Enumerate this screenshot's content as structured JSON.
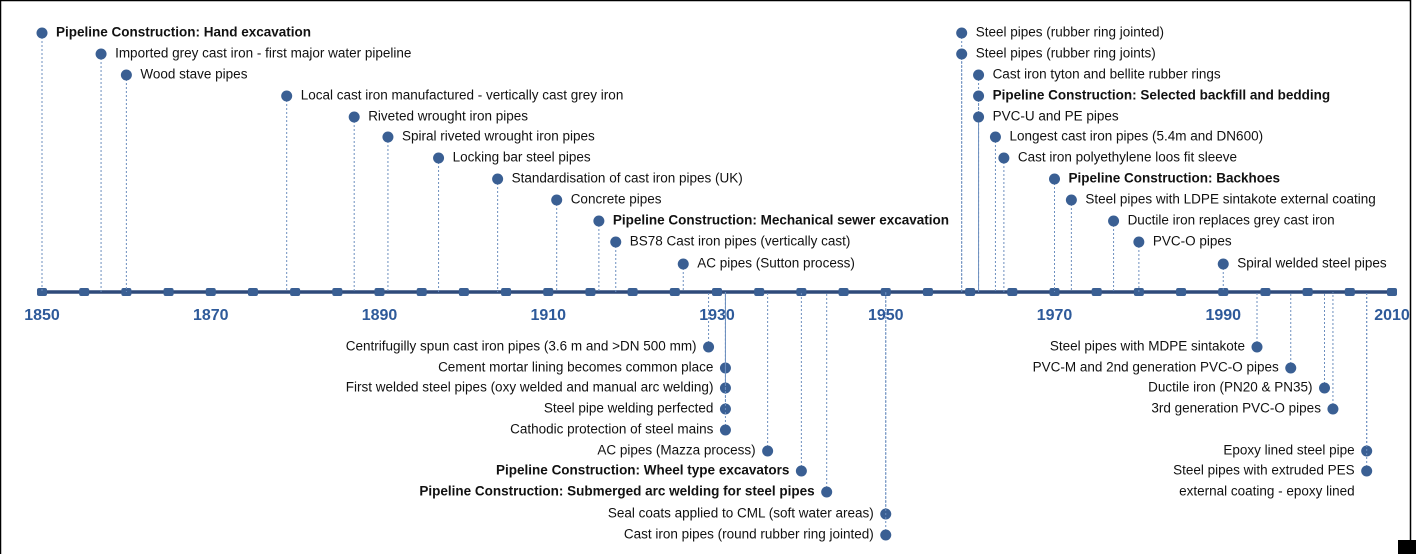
{
  "axis": {
    "start": 1850,
    "end": 2010,
    "minor_step": 5,
    "labels": [
      1850,
      1870,
      1890,
      1910,
      1930,
      1950,
      1970,
      1990,
      2010
    ]
  },
  "above": [
    {
      "year": 1850,
      "bold": true,
      "lines": [
        "Pipeline Construction:  Hand excavation"
      ]
    },
    {
      "year": 1857,
      "lines": [
        "Imported grey cast iron - first major water pipeline"
      ]
    },
    {
      "year": 1860,
      "lines": [
        "Wood stave pipes"
      ]
    },
    {
      "year": 1879,
      "lines": [
        "Local cast iron manufactured - vertically cast grey iron"
      ]
    },
    {
      "year": 1887,
      "lines": [
        "Riveted wrought iron pipes"
      ]
    },
    {
      "year": 1891,
      "lines": [
        "Spiral riveted wrought iron pipes"
      ]
    },
    {
      "year": 1897,
      "lines": [
        "Locking bar steel pipes"
      ]
    },
    {
      "year": 1904,
      "lines": [
        "Standardisation of cast iron pipes (UK)"
      ]
    },
    {
      "year": 1911,
      "lines": [
        "Concrete pipes"
      ]
    },
    {
      "year": 1916,
      "bold": true,
      "lines": [
        "Pipeline Construction: Mechanical sewer excavation"
      ]
    },
    {
      "year": 1918,
      "lines": [
        "BS78 Cast iron pipes (vertically cast)"
      ]
    },
    {
      "year": 1926,
      "lines": [
        "AC pipes (Sutton process)"
      ]
    },
    {
      "year": 1959,
      "lines": [
        "Steel pipes (rubber ring jointed)"
      ]
    },
    {
      "year": 1959,
      "lines": [
        "Steel pipes (rubber ring joints)"
      ]
    },
    {
      "year": 1961,
      "lines": [
        "Cast iron tyton and bellite rubber rings"
      ]
    },
    {
      "year": 1961,
      "bold": true,
      "lines": [
        "Pipeline Construction: Selected backfill and bedding"
      ]
    },
    {
      "year": 1961,
      "lines": [
        "PVC-U and PE pipes"
      ]
    },
    {
      "year": 1963,
      "lines": [
        "Longest cast iron pipes (5.4m and DN600)"
      ]
    },
    {
      "year": 1964,
      "lines": [
        "Cast iron polyethylene loos fit sleeve"
      ]
    },
    {
      "year": 1970,
      "bold": true,
      "lines": [
        "Pipeline Construction:  Backhoes"
      ]
    },
    {
      "year": 1972,
      "lines": [
        "Steel pipes with LDPE sintakote external coating"
      ]
    },
    {
      "year": 1977,
      "lines": [
        "Ductile iron replaces grey cast iron"
      ]
    },
    {
      "year": 1980,
      "lines": [
        "PVC-O pipes"
      ]
    },
    {
      "year": 1990,
      "lines": [
        "Spiral welded steel pipes"
      ]
    }
  ],
  "below": [
    {
      "year": 1929,
      "lines": [
        "Centrifugilly spun cast iron pipes (3.6 m and >DN 500 mm)"
      ]
    },
    {
      "year": 1931,
      "lines": [
        "Cement mortar lining becomes common place"
      ]
    },
    {
      "year": 1931,
      "lines": [
        "First welded steel pipes (oxy welded and manual arc welding)"
      ]
    },
    {
      "year": 1931,
      "lines": [
        "Steel pipe welding perfected"
      ]
    },
    {
      "year": 1931,
      "lines": [
        "Cathodic protection of steel mains"
      ]
    },
    {
      "year": 1936,
      "lines": [
        "AC pipes (Mazza process)"
      ]
    },
    {
      "year": 1940,
      "bold": true,
      "lines": [
        "Pipeline Construction: Wheel type excavators"
      ]
    },
    {
      "year": 1943,
      "bold": true,
      "lines": [
        "Pipeline Construction:  Submerged arc welding for steel pipes"
      ]
    },
    {
      "year": 1950,
      "lines": [
        "Seal coats applied to CML (soft water areas)"
      ]
    },
    {
      "year": 1950,
      "lines": [
        "Cast iron pipes (round rubber ring jointed)"
      ]
    },
    {
      "year": 1994,
      "lines": [
        "Steel pipes with MDPE sintakote"
      ]
    },
    {
      "year": 1998,
      "lines": [
        "PVC-M and 2nd generation PVC-O pipes"
      ]
    },
    {
      "year": 2002,
      "lines": [
        "Ductile iron (PN20 & PN35)"
      ]
    },
    {
      "year": 2003,
      "lines": [
        "3rd generation PVC-O pipes"
      ]
    },
    {
      "year": 2007,
      "lines": [
        "Epoxy lined steel pipe"
      ]
    },
    {
      "year": 2007,
      "lines": [
        "Steel pipes with extruded PES",
        "external coating - epoxy lined"
      ]
    }
  ]
}
